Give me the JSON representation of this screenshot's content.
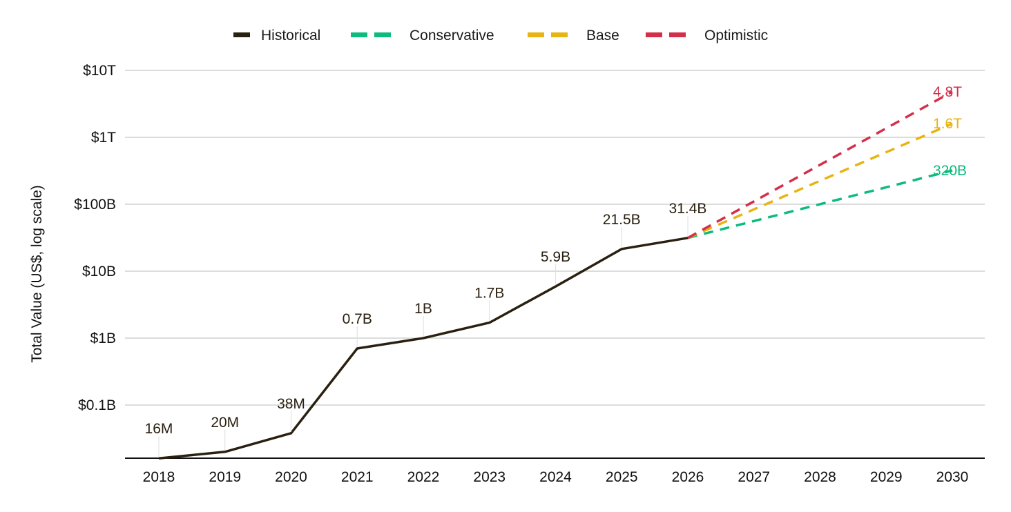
{
  "chart_data": {
    "type": "line",
    "title": "",
    "xlabel": "",
    "ylabel": "Total Value (US$, log scale)",
    "y_scale": "log",
    "ylim": [
      0.015,
      10000
    ],
    "y_ticks": [
      {
        "value": 0.1,
        "label": "$0.1B"
      },
      {
        "value": 1,
        "label": "$1B"
      },
      {
        "value": 10,
        "label": "$10B"
      },
      {
        "value": 100,
        "label": "$100B"
      },
      {
        "value": 1000,
        "label": "$1T"
      },
      {
        "value": 10000,
        "label": "$10T"
      }
    ],
    "x": [
      2018,
      2019,
      2020,
      2021,
      2022,
      2023,
      2024,
      2025,
      2026,
      2027,
      2028,
      2029,
      2030
    ],
    "x_tick_labels": [
      "2018",
      "2019",
      "2020",
      "2021",
      "2022",
      "2023",
      "2024",
      "2025",
      "2026",
      "2027",
      "2028",
      "2029",
      "2030"
    ],
    "grid": true,
    "legend_position": "top-center",
    "series": [
      {
        "name": "Historical",
        "color": "#2a2010",
        "dashed": false,
        "x": [
          2018,
          2019,
          2020,
          2021,
          2022,
          2023,
          2024,
          2025,
          2026
        ],
        "values": [
          0.016,
          0.02,
          0.038,
          0.7,
          1,
          1.7,
          5.9,
          21.5,
          31.4
        ],
        "labels": [
          "16M",
          "20M",
          "38M",
          "0.7B",
          "1B",
          "1.7B",
          "5.9B",
          "21.5B",
          "31.4B"
        ]
      },
      {
        "name": "Conservative",
        "color": "#0dbb7c",
        "dashed": true,
        "x": [
          2026,
          2030
        ],
        "values": [
          31.4,
          320
        ],
        "end_label": "320B"
      },
      {
        "name": "Base",
        "color": "#e8b411",
        "dashed": true,
        "x": [
          2026,
          2030
        ],
        "values": [
          31.4,
          1600
        ],
        "end_label": "1.6T"
      },
      {
        "name": "Optimistic",
        "color": "#d42f4a",
        "dashed": true,
        "x": [
          2026,
          2030
        ],
        "values": [
          31.4,
          4800
        ],
        "end_label": "4.8T"
      }
    ]
  }
}
